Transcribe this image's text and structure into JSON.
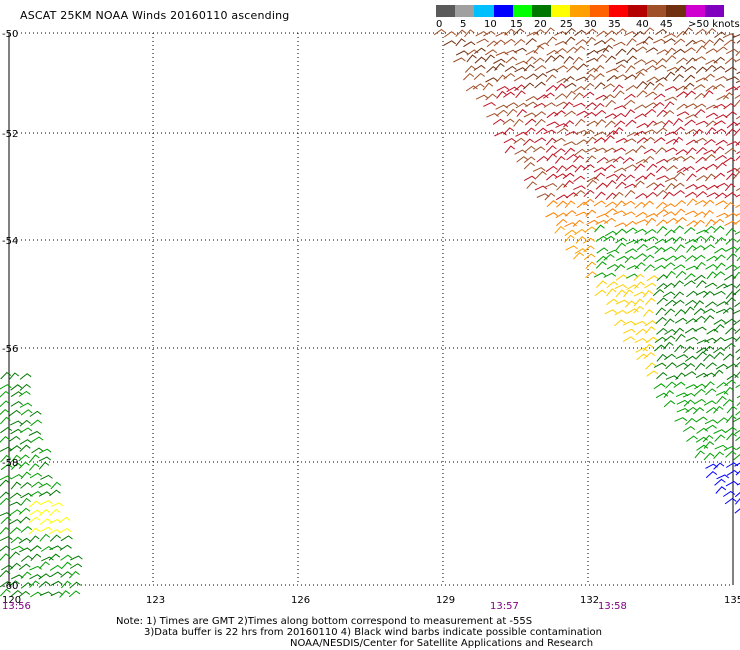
{
  "title": "ASCAT 25KM NOAA Winds 20160110 ascending",
  "colorbar": {
    "colors": [
      "#5a5a5a",
      "#a0a0a0",
      "#00bfff",
      "#0000ff",
      "#00ff00",
      "#007800",
      "#ffff00",
      "#ffa000",
      "#ff6000",
      "#ff0000",
      "#b40000",
      "#a05028",
      "#703010",
      "#d000d0",
      "#8000c0"
    ],
    "labels": [
      "0",
      "5",
      "10",
      "15",
      "20",
      "25",
      "30",
      "35",
      "40",
      "45",
      ">50 knots"
    ]
  },
  "axes": {
    "lat_labels": [
      "-50",
      "-52",
      "-54",
      "-56",
      "-58",
      "-60"
    ],
    "lon_labels": [
      "120",
      "123",
      "126",
      "129",
      "132",
      "135"
    ],
    "time_labels": [
      "13:56",
      "13:57",
      "13:58"
    ]
  },
  "notes": {
    "line1": "Note: 1) Times are GMT 2)Times along bottom correspond to measurement at -55S",
    "line2": "3)Data buffer is 22 hrs from 20160110 4) Black wind barbs indicate possible contamination",
    "line3": "NOAA/NESDIS/Center for Satellite Applications and Research"
  }
}
